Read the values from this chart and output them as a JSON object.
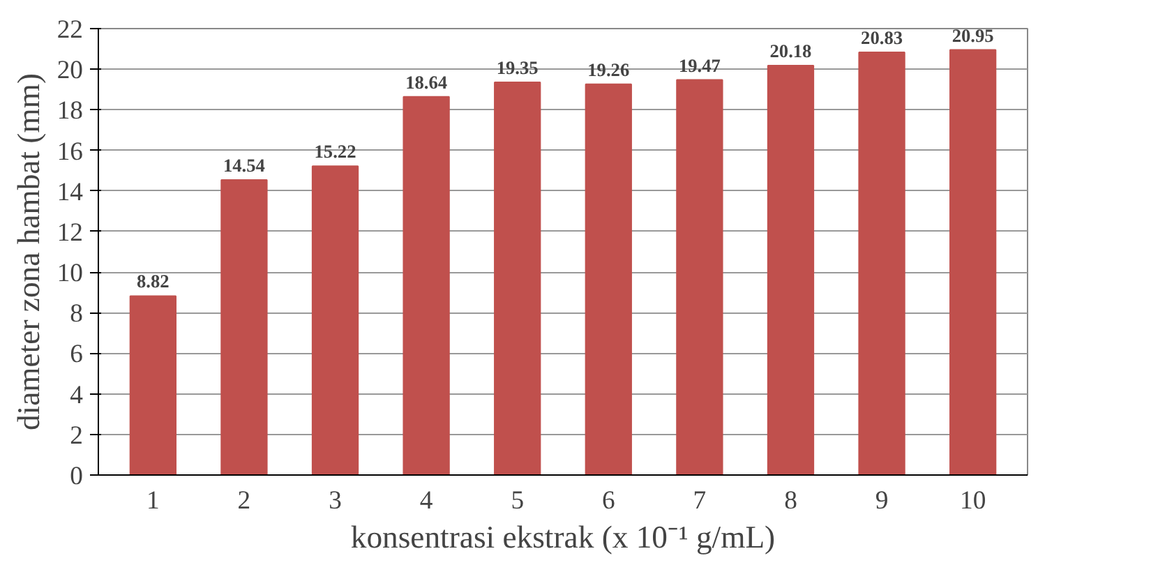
{
  "chart_data": {
    "type": "bar",
    "xlabel": "konsentrasi ekstrak (x 10⁻¹ g/mL)",
    "ylabel": "diameter zona hambat (mm)",
    "categories": [
      "1",
      "2",
      "3",
      "4",
      "5",
      "6",
      "7",
      "8",
      "9",
      "10"
    ],
    "values": [
      8.82,
      14.54,
      15.22,
      18.64,
      19.35,
      19.26,
      19.47,
      20.18,
      20.83,
      20.95
    ],
    "color": "#c0504d",
    "ylim": [
      0,
      22
    ],
    "yticks": [
      0,
      2,
      4,
      6,
      8,
      10,
      12,
      14,
      16,
      18,
      20,
      22
    ],
    "grid": "y",
    "data_labels": true
  }
}
